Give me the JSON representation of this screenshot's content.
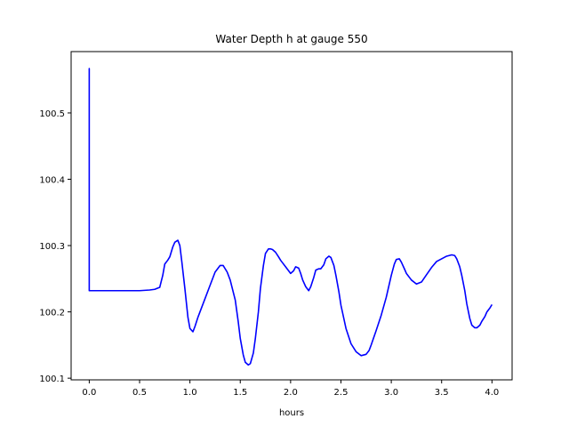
{
  "chart_data": {
    "type": "line",
    "title": "Water Depth h at gauge 550",
    "xlabel": "hours",
    "ylabel": "",
    "xlim": [
      -0.18,
      4.2
    ],
    "ylim": [
      100.0975,
      100.5925
    ],
    "xticks": [
      0.0,
      0.5,
      1.0,
      1.5,
      2.0,
      2.5,
      3.0,
      3.5,
      4.0
    ],
    "xtick_labels": [
      "0.0",
      "0.5",
      "1.0",
      "1.5",
      "2.0",
      "2.5",
      "3.0",
      "3.5",
      "4.0"
    ],
    "yticks": [
      100.1,
      100.2,
      100.3,
      100.4,
      100.5
    ],
    "ytick_labels": [
      "100.1",
      "100.2",
      "100.3",
      "100.4",
      "100.5"
    ],
    "grid": false,
    "series": [
      {
        "color": "#0000ff",
        "x": [
          0.0,
          0.0,
          0.0,
          0.05,
          0.5,
          0.6,
          0.65,
          0.7,
          0.73,
          0.75,
          0.78,
          0.8,
          0.83,
          0.85,
          0.88,
          0.9,
          0.92,
          0.95,
          0.98,
          1.0,
          1.03,
          1.05,
          1.08,
          1.1,
          1.15,
          1.2,
          1.25,
          1.3,
          1.33,
          1.37,
          1.4,
          1.45,
          1.48,
          1.5,
          1.53,
          1.55,
          1.58,
          1.6,
          1.63,
          1.65,
          1.68,
          1.7,
          1.73,
          1.75,
          1.78,
          1.8,
          1.82,
          1.85,
          1.88,
          1.9,
          1.92,
          1.95,
          2.0,
          2.03,
          2.05,
          2.08,
          2.1,
          2.12,
          2.15,
          2.18,
          2.2,
          2.23,
          2.25,
          2.28,
          2.3,
          2.33,
          2.35,
          2.38,
          2.4,
          2.43,
          2.45,
          2.48,
          2.5,
          2.55,
          2.6,
          2.65,
          2.7,
          2.75,
          2.78,
          2.8,
          2.85,
          2.9,
          2.95,
          3.0,
          3.03,
          3.05,
          3.08,
          3.1,
          3.13,
          3.15,
          3.2,
          3.25,
          3.3,
          3.35,
          3.4,
          3.45,
          3.5,
          3.55,
          3.6,
          3.63,
          3.65,
          3.68,
          3.7,
          3.73,
          3.75,
          3.78,
          3.8,
          3.83,
          3.85,
          3.88,
          3.9,
          3.93,
          3.95,
          3.98,
          4.0
        ],
        "y": [
          100.232,
          100.567,
          100.232,
          100.232,
          100.232,
          100.233,
          100.234,
          100.237,
          100.255,
          100.272,
          100.278,
          100.283,
          100.298,
          100.305,
          100.308,
          100.3,
          100.275,
          100.235,
          100.192,
          100.175,
          100.17,
          100.178,
          100.192,
          100.2,
          100.22,
          100.24,
          100.26,
          100.27,
          100.27,
          100.26,
          100.248,
          100.218,
          100.185,
          100.16,
          100.135,
          100.124,
          100.12,
          100.122,
          100.138,
          100.16,
          100.2,
          100.235,
          100.27,
          100.288,
          100.295,
          100.295,
          100.294,
          100.29,
          100.283,
          100.278,
          100.274,
          100.268,
          100.258,
          100.262,
          100.268,
          100.266,
          100.258,
          100.248,
          100.238,
          100.232,
          100.238,
          100.252,
          100.263,
          100.265,
          100.265,
          100.271,
          100.28,
          100.284,
          100.282,
          100.27,
          100.255,
          100.23,
          100.21,
          100.175,
          100.152,
          100.14,
          100.134,
          100.136,
          100.142,
          100.15,
          100.172,
          100.195,
          100.222,
          100.255,
          100.272,
          100.279,
          100.28,
          100.275,
          100.265,
          100.258,
          100.248,
          100.242,
          100.245,
          100.256,
          100.267,
          100.276,
          100.28,
          100.284,
          100.286,
          100.285,
          100.28,
          100.268,
          100.255,
          100.232,
          100.212,
          100.19,
          100.18,
          100.176,
          100.176,
          100.18,
          100.186,
          100.193,
          100.2,
          100.206,
          100.211
        ]
      }
    ]
  }
}
